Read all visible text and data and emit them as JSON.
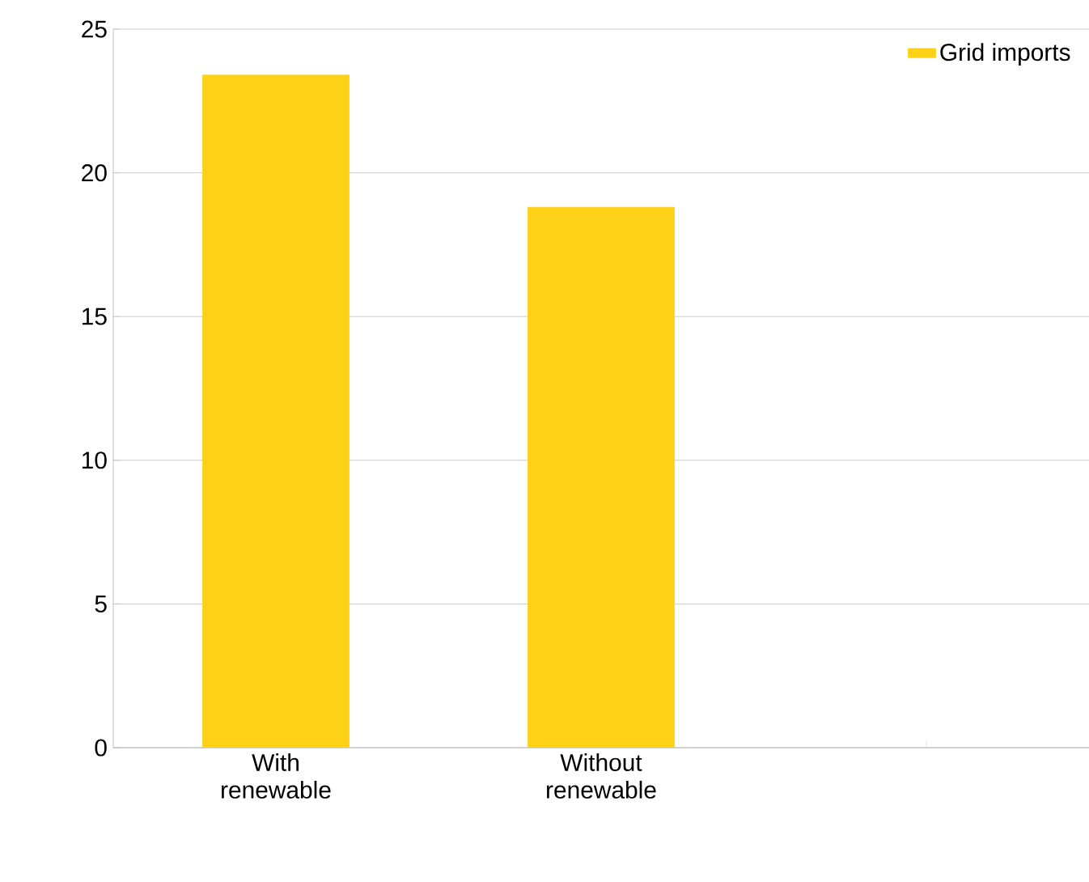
{
  "chart_data": {
    "type": "bar",
    "categories": [
      "With renewable",
      "Without renewable",
      null
    ],
    "series": [
      {
        "name": "Grid imports",
        "color": "#fcd116",
        "values": [
          23.4,
          18.8,
          null
        ]
      }
    ],
    "ylim": [
      0,
      25
    ],
    "yticks": [
      0,
      5,
      10,
      15,
      20,
      25
    ],
    "grid": "y",
    "legend": "top right"
  }
}
